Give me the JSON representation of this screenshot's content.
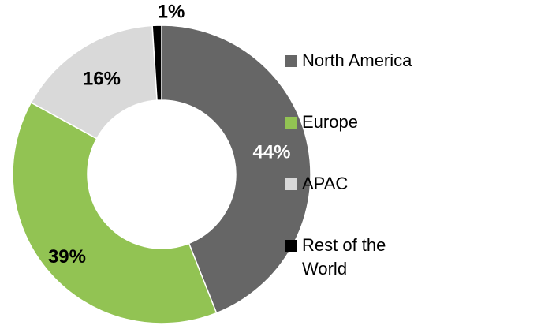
{
  "chart_data": {
    "type": "donut",
    "categories": [
      "North America",
      "Europe",
      "APAC",
      "Rest of the World"
    ],
    "values": [
      44,
      39,
      16,
      1
    ],
    "value_labels": [
      "44%",
      "39%",
      "16%",
      "1%"
    ],
    "colors": [
      "#666666",
      "#92c353",
      "#d9d9d9",
      "#000000"
    ],
    "label_colors": [
      "#ffffff",
      "#000000",
      "#000000",
      "#000000"
    ],
    "legend": "right"
  }
}
